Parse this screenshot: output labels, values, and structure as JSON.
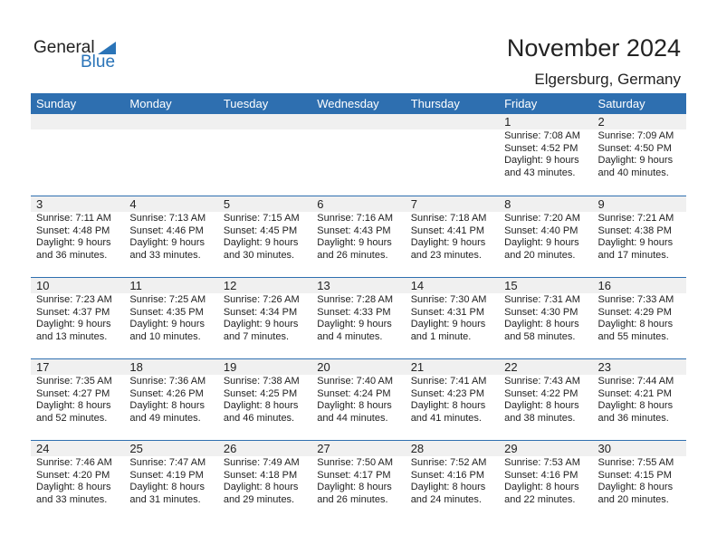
{
  "logo": {
    "general": "General",
    "blue": "Blue"
  },
  "title": "November 2024",
  "location": "Elgersburg, Germany",
  "colors": {
    "header": "#2e6fb0",
    "brand": "#2a74b8",
    "day_band": "#f0f0f0"
  },
  "days": [
    "Sunday",
    "Monday",
    "Tuesday",
    "Wednesday",
    "Thursday",
    "Friday",
    "Saturday"
  ],
  "weeks": [
    [
      null,
      null,
      null,
      null,
      null,
      {
        "day": "1",
        "sunrise": "Sunrise: 7:08 AM",
        "sunset": "Sunset: 4:52 PM",
        "daylight": "Daylight: 9 hours",
        "minutes": "and 43 minutes."
      },
      {
        "day": "2",
        "sunrise": "Sunrise: 7:09 AM",
        "sunset": "Sunset: 4:50 PM",
        "daylight": "Daylight: 9 hours",
        "minutes": "and 40 minutes."
      }
    ],
    [
      {
        "day": "3",
        "sunrise": "Sunrise: 7:11 AM",
        "sunset": "Sunset: 4:48 PM",
        "daylight": "Daylight: 9 hours",
        "minutes": "and 36 minutes."
      },
      {
        "day": "4",
        "sunrise": "Sunrise: 7:13 AM",
        "sunset": "Sunset: 4:46 PM",
        "daylight": "Daylight: 9 hours",
        "minutes": "and 33 minutes."
      },
      {
        "day": "5",
        "sunrise": "Sunrise: 7:15 AM",
        "sunset": "Sunset: 4:45 PM",
        "daylight": "Daylight: 9 hours",
        "minutes": "and 30 minutes."
      },
      {
        "day": "6",
        "sunrise": "Sunrise: 7:16 AM",
        "sunset": "Sunset: 4:43 PM",
        "daylight": "Daylight: 9 hours",
        "minutes": "and 26 minutes."
      },
      {
        "day": "7",
        "sunrise": "Sunrise: 7:18 AM",
        "sunset": "Sunset: 4:41 PM",
        "daylight": "Daylight: 9 hours",
        "minutes": "and 23 minutes."
      },
      {
        "day": "8",
        "sunrise": "Sunrise: 7:20 AM",
        "sunset": "Sunset: 4:40 PM",
        "daylight": "Daylight: 9 hours",
        "minutes": "and 20 minutes."
      },
      {
        "day": "9",
        "sunrise": "Sunrise: 7:21 AM",
        "sunset": "Sunset: 4:38 PM",
        "daylight": "Daylight: 9 hours",
        "minutes": "and 17 minutes."
      }
    ],
    [
      {
        "day": "10",
        "sunrise": "Sunrise: 7:23 AM",
        "sunset": "Sunset: 4:37 PM",
        "daylight": "Daylight: 9 hours",
        "minutes": "and 13 minutes."
      },
      {
        "day": "11",
        "sunrise": "Sunrise: 7:25 AM",
        "sunset": "Sunset: 4:35 PM",
        "daylight": "Daylight: 9 hours",
        "minutes": "and 10 minutes."
      },
      {
        "day": "12",
        "sunrise": "Sunrise: 7:26 AM",
        "sunset": "Sunset: 4:34 PM",
        "daylight": "Daylight: 9 hours",
        "minutes": "and 7 minutes."
      },
      {
        "day": "13",
        "sunrise": "Sunrise: 7:28 AM",
        "sunset": "Sunset: 4:33 PM",
        "daylight": "Daylight: 9 hours",
        "minutes": "and 4 minutes."
      },
      {
        "day": "14",
        "sunrise": "Sunrise: 7:30 AM",
        "sunset": "Sunset: 4:31 PM",
        "daylight": "Daylight: 9 hours",
        "minutes": "and 1 minute."
      },
      {
        "day": "15",
        "sunrise": "Sunrise: 7:31 AM",
        "sunset": "Sunset: 4:30 PM",
        "daylight": "Daylight: 8 hours",
        "minutes": "and 58 minutes."
      },
      {
        "day": "16",
        "sunrise": "Sunrise: 7:33 AM",
        "sunset": "Sunset: 4:29 PM",
        "daylight": "Daylight: 8 hours",
        "minutes": "and 55 minutes."
      }
    ],
    [
      {
        "day": "17",
        "sunrise": "Sunrise: 7:35 AM",
        "sunset": "Sunset: 4:27 PM",
        "daylight": "Daylight: 8 hours",
        "minutes": "and 52 minutes."
      },
      {
        "day": "18",
        "sunrise": "Sunrise: 7:36 AM",
        "sunset": "Sunset: 4:26 PM",
        "daylight": "Daylight: 8 hours",
        "minutes": "and 49 minutes."
      },
      {
        "day": "19",
        "sunrise": "Sunrise: 7:38 AM",
        "sunset": "Sunset: 4:25 PM",
        "daylight": "Daylight: 8 hours",
        "minutes": "and 46 minutes."
      },
      {
        "day": "20",
        "sunrise": "Sunrise: 7:40 AM",
        "sunset": "Sunset: 4:24 PM",
        "daylight": "Daylight: 8 hours",
        "minutes": "and 44 minutes."
      },
      {
        "day": "21",
        "sunrise": "Sunrise: 7:41 AM",
        "sunset": "Sunset: 4:23 PM",
        "daylight": "Daylight: 8 hours",
        "minutes": "and 41 minutes."
      },
      {
        "day": "22",
        "sunrise": "Sunrise: 7:43 AM",
        "sunset": "Sunset: 4:22 PM",
        "daylight": "Daylight: 8 hours",
        "minutes": "and 38 minutes."
      },
      {
        "day": "23",
        "sunrise": "Sunrise: 7:44 AM",
        "sunset": "Sunset: 4:21 PM",
        "daylight": "Daylight: 8 hours",
        "minutes": "and 36 minutes."
      }
    ],
    [
      {
        "day": "24",
        "sunrise": "Sunrise: 7:46 AM",
        "sunset": "Sunset: 4:20 PM",
        "daylight": "Daylight: 8 hours",
        "minutes": "and 33 minutes."
      },
      {
        "day": "25",
        "sunrise": "Sunrise: 7:47 AM",
        "sunset": "Sunset: 4:19 PM",
        "daylight": "Daylight: 8 hours",
        "minutes": "and 31 minutes."
      },
      {
        "day": "26",
        "sunrise": "Sunrise: 7:49 AM",
        "sunset": "Sunset: 4:18 PM",
        "daylight": "Daylight: 8 hours",
        "minutes": "and 29 minutes."
      },
      {
        "day": "27",
        "sunrise": "Sunrise: 7:50 AM",
        "sunset": "Sunset: 4:17 PM",
        "daylight": "Daylight: 8 hours",
        "minutes": "and 26 minutes."
      },
      {
        "day": "28",
        "sunrise": "Sunrise: 7:52 AM",
        "sunset": "Sunset: 4:16 PM",
        "daylight": "Daylight: 8 hours",
        "minutes": "and 24 minutes."
      },
      {
        "day": "29",
        "sunrise": "Sunrise: 7:53 AM",
        "sunset": "Sunset: 4:16 PM",
        "daylight": "Daylight: 8 hours",
        "minutes": "and 22 minutes."
      },
      {
        "day": "30",
        "sunrise": "Sunrise: 7:55 AM",
        "sunset": "Sunset: 4:15 PM",
        "daylight": "Daylight: 8 hours",
        "minutes": "and 20 minutes."
      }
    ]
  ]
}
